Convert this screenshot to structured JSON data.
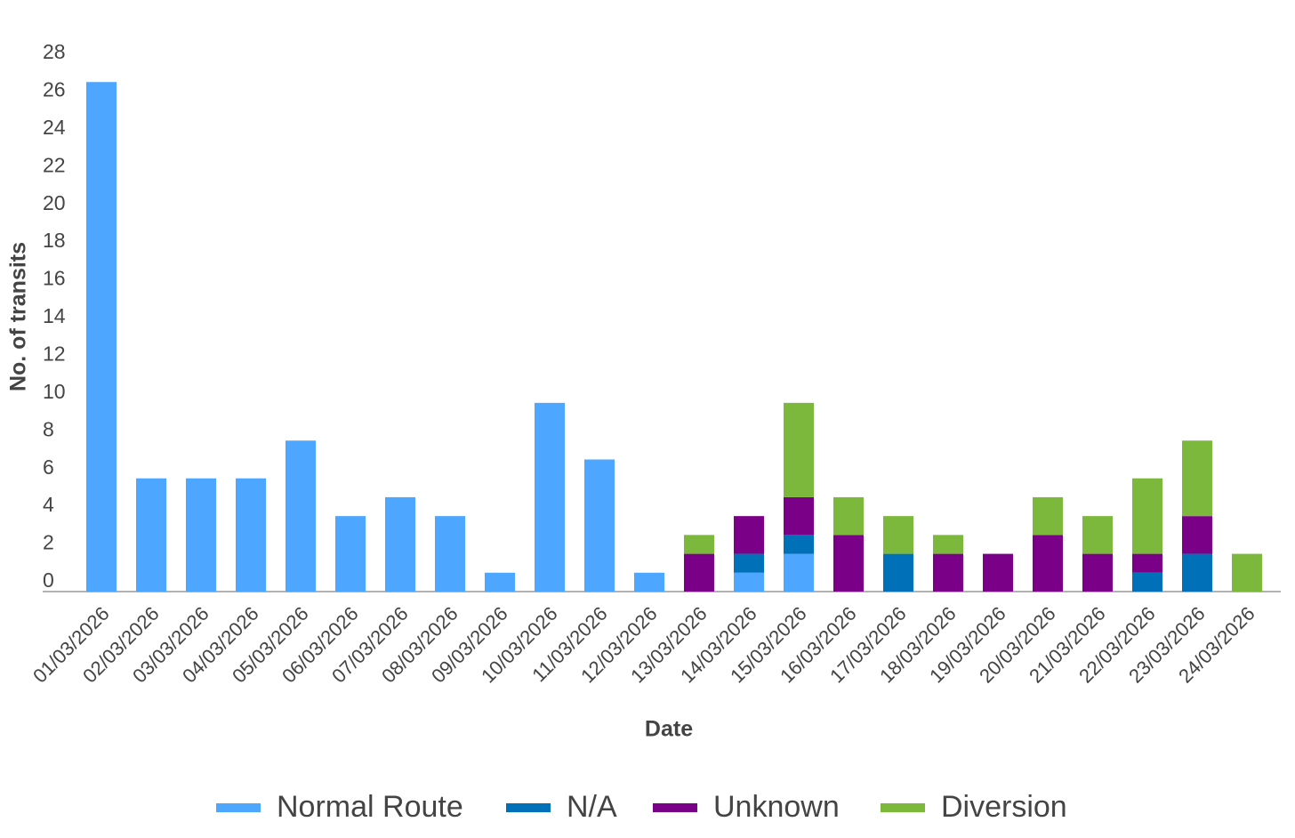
{
  "chart_data": {
    "type": "stacked-bar",
    "x_label": "Date",
    "y_label": "No. of transits",
    "categories": [
      "01/03/2026",
      "02/03/2026",
      "03/03/2026",
      "04/03/2026",
      "05/03/2026",
      "06/03/2026",
      "07/03/2026",
      "08/03/2026",
      "09/03/2026",
      "10/03/2026",
      "11/03/2026",
      "12/03/2026",
      "13/03/2026",
      "14/03/2026",
      "15/03/2026",
      "16/03/2026",
      "17/03/2026",
      "18/03/2026",
      "19/03/2026",
      "20/03/2026",
      "21/03/2026",
      "22/03/2026",
      "23/03/2026",
      "24/03/2026"
    ],
    "series": [
      {
        "name": "Normal Route",
        "color": "#4da6ff",
        "values": [
          27,
          6,
          6,
          6,
          8,
          4,
          5,
          4,
          1,
          10,
          7,
          1,
          0,
          1,
          2,
          0,
          0,
          0,
          0,
          0,
          0,
          0,
          0,
          0
        ]
      },
      {
        "name": "N/A",
        "color": "#0070b8",
        "values": [
          0,
          0,
          0,
          0,
          0,
          0,
          0,
          0,
          0,
          0,
          0,
          0,
          0,
          1,
          1,
          0,
          2,
          0,
          0,
          0,
          0,
          1,
          2,
          0
        ]
      },
      {
        "name": "Unknown",
        "color": "#7b0088",
        "values": [
          0,
          0,
          0,
          0,
          0,
          0,
          0,
          0,
          0,
          0,
          0,
          0,
          2,
          2,
          2,
          3,
          0,
          2,
          2,
          3,
          2,
          1,
          2,
          0
        ]
      },
      {
        "name": "Diversion",
        "color": "#7cb83b",
        "values": [
          0,
          0,
          0,
          0,
          0,
          0,
          0,
          0,
          0,
          0,
          0,
          0,
          1,
          0,
          5,
          2,
          2,
          1,
          0,
          2,
          2,
          4,
          4,
          2
        ]
      }
    ],
    "ylim": [
      0,
      28
    ],
    "yticks": [
      0,
      2,
      4,
      6,
      8,
      10,
      12,
      14,
      16,
      18,
      20,
      22,
      24,
      26,
      28
    ],
    "grid": false,
    "legend": "bottom"
  }
}
